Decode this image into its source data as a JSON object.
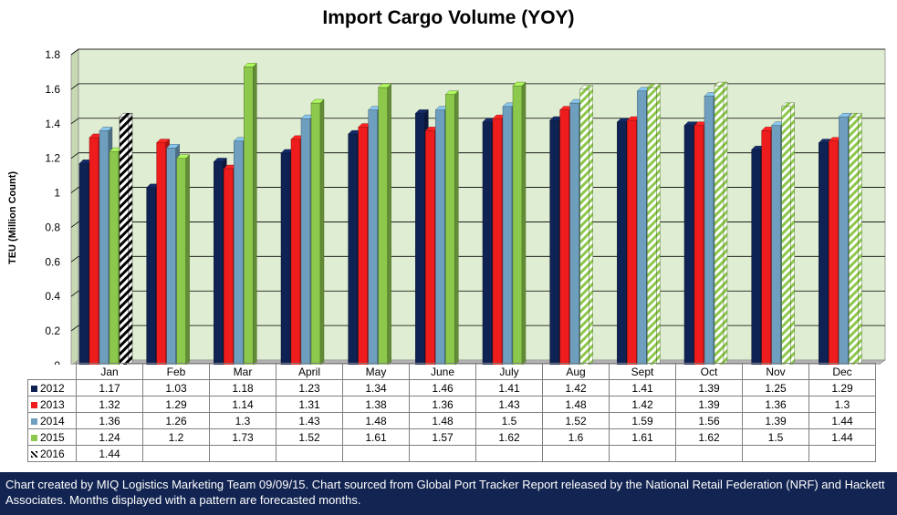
{
  "chart_data": {
    "type": "bar",
    "title": "Import Cargo Volume (YOY)",
    "ylabel": "TEU (Million Count)",
    "xlabel": "",
    "ylim": [
      0,
      1.8
    ],
    "yticks": [
      "0",
      "0.2",
      "0.4",
      "0.6",
      "0.8",
      "1",
      "1.2",
      "1.4",
      "1.6",
      "1.8"
    ],
    "grid": true,
    "legend": "data table below plot",
    "categories": [
      "Jan",
      "Feb",
      "Mar",
      "April",
      "May",
      "June",
      "July",
      "Aug",
      "Sept",
      "Oct",
      "Nov",
      "Dec"
    ],
    "series": [
      {
        "name": "2012",
        "color": "#0f2254",
        "values": [
          1.17,
          1.03,
          1.18,
          1.23,
          1.34,
          1.46,
          1.41,
          1.42,
          1.41,
          1.39,
          1.25,
          1.29
        ]
      },
      {
        "name": "2013",
        "color": "#ee1c1c",
        "values": [
          1.32,
          1.29,
          1.14,
          1.31,
          1.38,
          1.36,
          1.43,
          1.48,
          1.42,
          1.39,
          1.36,
          1.3
        ]
      },
      {
        "name": "2014",
        "color": "#6e9fbf",
        "values": [
          1.36,
          1.26,
          1.3,
          1.43,
          1.48,
          1.48,
          1.5,
          1.52,
          1.59,
          1.56,
          1.39,
          1.44
        ]
      },
      {
        "name": "2015",
        "color": "#8cc84b",
        "values": [
          1.24,
          1.2,
          1.73,
          1.52,
          1.61,
          1.57,
          1.62,
          1.6,
          1.61,
          1.62,
          1.5,
          1.44
        ]
      },
      {
        "name": "2016",
        "color": "#000000",
        "values": [
          1.44,
          null,
          null,
          null,
          null,
          null,
          null,
          null,
          null,
          null,
          null,
          null
        ]
      }
    ],
    "forecast_months": [
      "Aug",
      "Sept",
      "Oct",
      "Nov",
      "Dec"
    ],
    "forecast_note": "Months displayed with a pattern are forecasted months",
    "plot_background": "#dfedd2"
  },
  "footer": {
    "text": "Chart created by MIQ Logistics Marketing Team 09/09/15. Chart sourced from Global Port Tracker Report released by the National Retail Federation (NRF) and Hackett Associates. Months displayed with a pattern are forecasted months."
  }
}
